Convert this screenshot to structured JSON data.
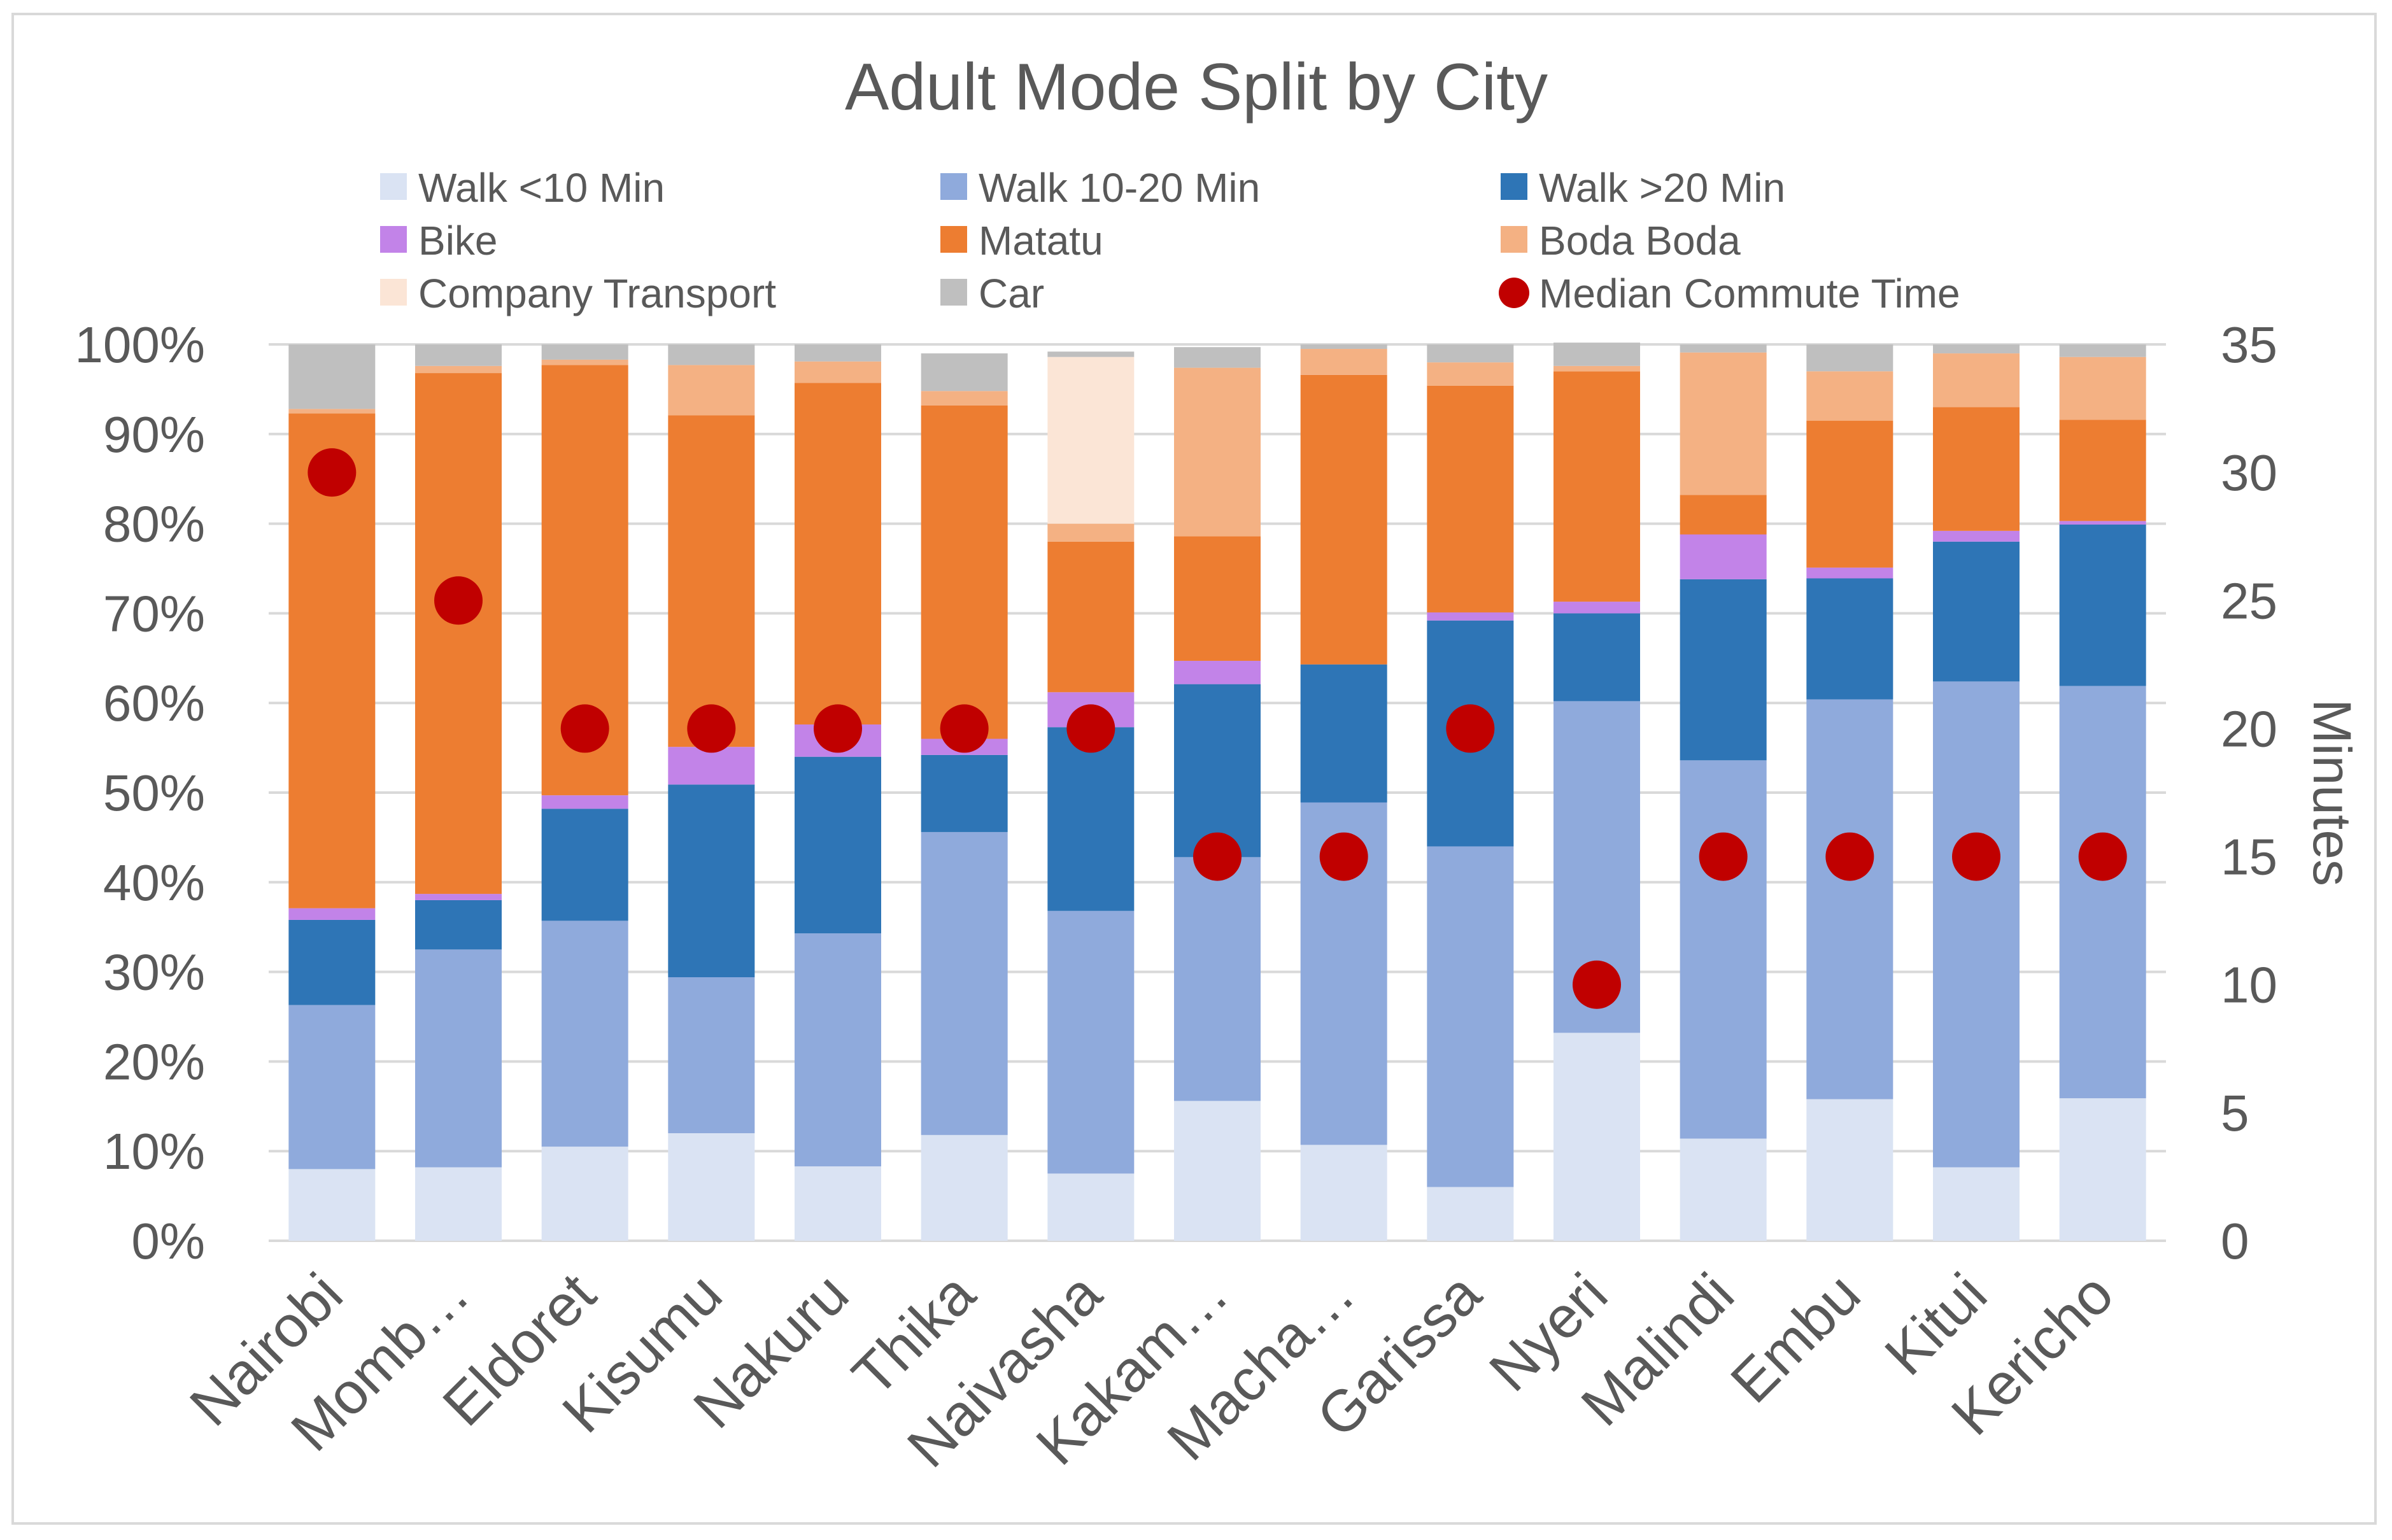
{
  "chart_data": {
    "type": "bar",
    "stacked": true,
    "title": "Adult Mode Split by City",
    "categories": [
      "Nairobi",
      "Momb…",
      "Eldoret",
      "Kisumu",
      "Nakuru",
      "Thika",
      "Naivasha",
      "Kakam…",
      "Macha…",
      "Garissa",
      "Nyeri",
      "Malindi",
      "Embu",
      "Kitui",
      "Kericho"
    ],
    "y_axis": {
      "ticks": [
        "0%",
        "10%",
        "20%",
        "30%",
        "40%",
        "50%",
        "60%",
        "70%",
        "80%",
        "90%",
        "100%"
      ],
      "ylim": [
        0,
        100
      ]
    },
    "y2_axis": {
      "label": "Minutes",
      "ticks": [
        "0",
        "5",
        "10",
        "15",
        "20",
        "25",
        "30",
        "35"
      ],
      "ylim": [
        0,
        35
      ]
    },
    "series": [
      {
        "name": "Walk <10 Min",
        "color": "#dae3f3",
        "values": [
          8,
          8.2,
          10.5,
          12,
          8.3,
          11.8,
          7.5,
          15.6,
          10.7,
          6,
          23.2,
          11.4,
          15.8,
          8.2,
          15.9
        ]
      },
      {
        "name": "Walk 10-20 Min",
        "color": "#8faadc",
        "values": [
          18.3,
          24.3,
          25.2,
          17.4,
          26,
          33.8,
          29.3,
          27.2,
          38.2,
          38,
          37,
          42.2,
          44.6,
          54.2,
          46
        ]
      },
      {
        "name": "Walk >20 Min",
        "color": "#2e75b6",
        "values": [
          9.5,
          5.5,
          12.5,
          21.5,
          19.7,
          8.6,
          20.5,
          19.3,
          15.4,
          25.2,
          9.8,
          20.2,
          13.5,
          15.6,
          18
        ]
      },
      {
        "name": "Bike",
        "color": "#c283e8",
        "values": [
          1.3,
          0.7,
          1.5,
          4.2,
          3.6,
          1.8,
          3.9,
          2.6,
          0,
          0.9,
          1.3,
          5,
          1.2,
          1.2,
          0.4
        ]
      },
      {
        "name": "Matatu",
        "color": "#ed7d31",
        "values": [
          55.2,
          58.1,
          48,
          37,
          38.1,
          37.2,
          16.8,
          13.9,
          32.3,
          25.3,
          25.7,
          4.4,
          16.4,
          13.8,
          11.3
        ]
      },
      {
        "name": "Boda Boda",
        "color": "#f4b183",
        "values": [
          0.5,
          0.8,
          0.6,
          5.6,
          2.4,
          1.6,
          2,
          18.8,
          2.9,
          2.6,
          0.6,
          15.9,
          5.5,
          6,
          7
        ]
      },
      {
        "name": "Company Transport",
        "color": "#fbe5d6",
        "values": [
          0,
          0,
          0,
          0,
          0,
          0,
          18.6,
          0,
          0,
          0,
          0,
          0,
          0,
          0,
          0
        ]
      },
      {
        "name": "Car",
        "color": "#bfbfbf",
        "values": [
          7.2,
          2.4,
          1.7,
          2.3,
          1.9,
          4.2,
          0.6,
          2.3,
          0.5,
          2,
          2.6,
          0.9,
          3,
          1,
          1.4
        ]
      }
    ],
    "line_series": {
      "name": "Median Commute Time",
      "color": "#c00000",
      "axis": "y2",
      "values": [
        30,
        25,
        20,
        20,
        20,
        20,
        20,
        15,
        15,
        20,
        10,
        15,
        15,
        15,
        15
      ]
    },
    "legend": {
      "placement": "top",
      "columns": 3
    }
  }
}
